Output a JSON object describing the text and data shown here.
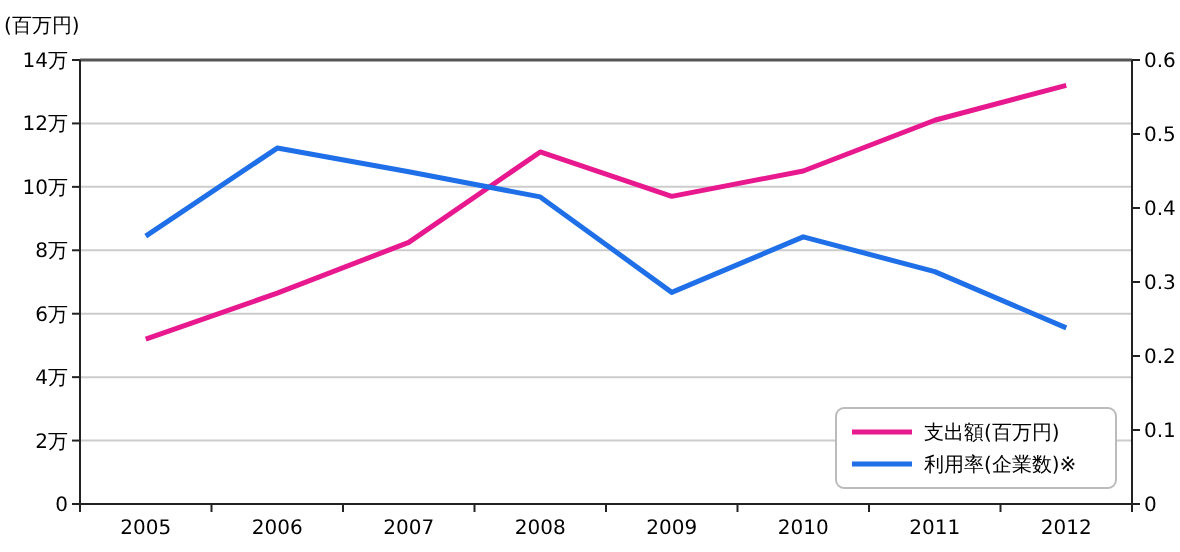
{
  "chart_data": {
    "type": "line",
    "ylabel": "(百万円)",
    "categories": [
      "2005",
      "2006",
      "2007",
      "2008",
      "2009",
      "2010",
      "2011",
      "2012"
    ],
    "series": [
      {
        "name": "支出額(百万円)",
        "color": "#e8188f",
        "values": [
          5.2,
          6.65,
          8.25,
          11.1,
          9.7,
          10.5,
          12.1,
          13.2
        ]
      },
      {
        "name": "利用率(企業数)※",
        "color": "#1e6fe8",
        "axis": "y2",
        "values": [
          0.362,
          0.481,
          0.449,
          0.415,
          0.286,
          0.361,
          0.314,
          0.238
        ]
      }
    ],
    "ylim": [
      0,
      14
    ],
    "yticks": [
      0,
      {
        "value": 2,
        "label": "2万"
      },
      {
        "value": 4,
        "label": "4万"
      },
      {
        "value": 6,
        "label": "6万"
      },
      {
        "value": 8,
        "label": "8万"
      },
      {
        "value": 10,
        "label": "10万"
      },
      {
        "value": 12,
        "label": "12万"
      },
      {
        "value": 14,
        "label": "14万"
      }
    ],
    "y2lim": [
      0,
      0.6
    ],
    "y2ticks": [
      0,
      0.1,
      0.2,
      0.3,
      0.4,
      0.5,
      0.6
    ],
    "grid": "y",
    "legend": "bottom right",
    "marker": "none",
    "line_style": "solid"
  }
}
